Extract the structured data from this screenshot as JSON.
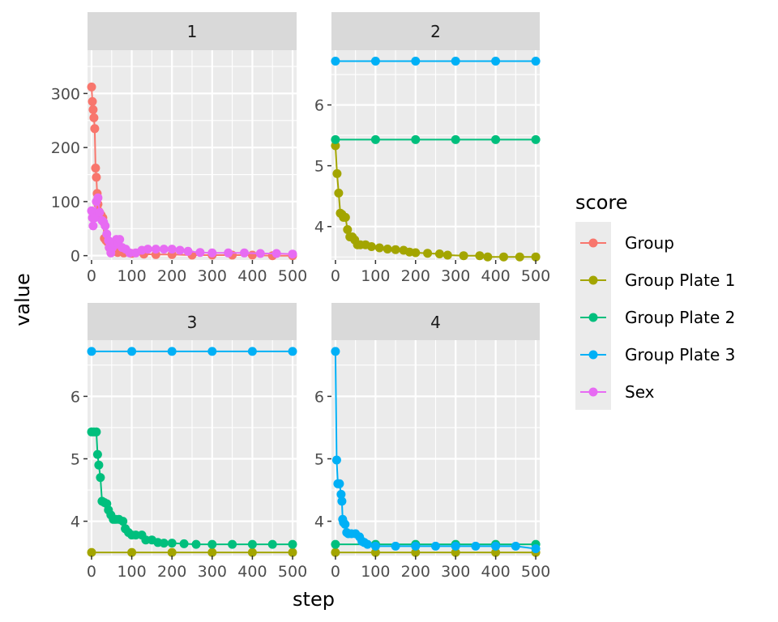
{
  "chart_data": {
    "type": "line",
    "xlabel": "step",
    "ylabel": "value",
    "legend": {
      "title": "score",
      "position": "right",
      "entries": [
        {
          "name": "Group",
          "color": "#F8766D"
        },
        {
          "name": "Group Plate 1",
          "color": "#A3A500"
        },
        {
          "name": "Group Plate 2",
          "color": "#00BF7D"
        },
        {
          "name": "Group Plate 3",
          "color": "#00B0F6"
        },
        {
          "name": "Sex",
          "color": "#E76BF3"
        }
      ]
    },
    "grid": true,
    "x_ticks": [
      0,
      100,
      200,
      300,
      400,
      500
    ],
    "xlim": [
      -10,
      510
    ],
    "panels": [
      {
        "strip": "1",
        "ylim": [
          -8,
          380
        ],
        "y_ticks": [
          0,
          100,
          200,
          300
        ],
        "series": [
          {
            "name": "Group",
            "points": [
              [
                0,
                312
              ],
              [
                2,
                285
              ],
              [
                4,
                270
              ],
              [
                6,
                255
              ],
              [
                8,
                235
              ],
              [
                10,
                162
              ],
              [
                12,
                145
              ],
              [
                14,
                115
              ],
              [
                16,
                95
              ],
              [
                18,
                82
              ],
              [
                20,
                80
              ],
              [
                24,
                75
              ],
              [
                28,
                70
              ],
              [
                32,
                32
              ],
              [
                36,
                28
              ],
              [
                40,
                25
              ],
              [
                44,
                15
              ],
              [
                48,
                10
              ],
              [
                55,
                8
              ],
              [
                65,
                6
              ],
              [
                80,
                5
              ],
              [
                100,
                4
              ],
              [
                130,
                3
              ],
              [
                160,
                2
              ],
              [
                200,
                2
              ],
              [
                250,
                1
              ],
              [
                300,
                1
              ],
              [
                350,
                1
              ],
              [
                400,
                1
              ],
              [
                450,
                0
              ],
              [
                500,
                0
              ]
            ]
          },
          {
            "name": "Sex",
            "points": [
              [
                0,
                83
              ],
              [
                2,
                70
              ],
              [
                4,
                55
              ],
              [
                8,
                70
              ],
              [
                12,
                100
              ],
              [
                16,
                107
              ],
              [
                20,
                80
              ],
              [
                26,
                65
              ],
              [
                30,
                62
              ],
              [
                34,
                55
              ],
              [
                38,
                40
              ],
              [
                42,
                28
              ],
              [
                44,
                15
              ],
              [
                48,
                5
              ],
              [
                52,
                15
              ],
              [
                58,
                20
              ],
              [
                62,
                30
              ],
              [
                66,
                22
              ],
              [
                70,
                30
              ],
              [
                76,
                15
              ],
              [
                85,
                12
              ],
              [
                95,
                5
              ],
              [
                110,
                5
              ],
              [
                125,
                10
              ],
              [
                140,
                12
              ],
              [
                160,
                12
              ],
              [
                180,
                12
              ],
              [
                200,
                12
              ],
              [
                220,
                10
              ],
              [
                240,
                8
              ],
              [
                270,
                6
              ],
              [
                300,
                5
              ],
              [
                340,
                5
              ],
              [
                380,
                5
              ],
              [
                420,
                4
              ],
              [
                460,
                4
              ],
              [
                500,
                3
              ]
            ]
          }
        ]
      },
      {
        "strip": "2",
        "ylim": [
          3.45,
          6.9
        ],
        "y_ticks": [
          4,
          5,
          6
        ],
        "series": [
          {
            "name": "Group Plate 1",
            "points": [
              [
                0,
                5.33
              ],
              [
                4,
                4.87
              ],
              [
                8,
                4.55
              ],
              [
                12,
                4.22
              ],
              [
                16,
                4.2
              ],
              [
                20,
                4.15
              ],
              [
                25,
                4.15
              ],
              [
                30,
                3.95
              ],
              [
                36,
                3.83
              ],
              [
                42,
                3.83
              ],
              [
                48,
                3.78
              ],
              [
                55,
                3.7
              ],
              [
                62,
                3.7
              ],
              [
                75,
                3.7
              ],
              [
                90,
                3.67
              ],
              [
                110,
                3.65
              ],
              [
                130,
                3.63
              ],
              [
                150,
                3.62
              ],
              [
                170,
                3.61
              ],
              [
                185,
                3.58
              ],
              [
                200,
                3.57
              ],
              [
                230,
                3.56
              ],
              [
                260,
                3.55
              ],
              [
                280,
                3.53
              ],
              [
                320,
                3.52
              ],
              [
                360,
                3.52
              ],
              [
                380,
                3.5
              ],
              [
                420,
                3.5
              ],
              [
                460,
                3.5
              ],
              [
                500,
                3.5
              ]
            ]
          },
          {
            "name": "Group Plate 2",
            "points": [
              [
                0,
                5.43
              ],
              [
                100,
                5.43
              ],
              [
                200,
                5.43
              ],
              [
                300,
                5.43
              ],
              [
                400,
                5.43
              ],
              [
                500,
                5.43
              ]
            ]
          },
          {
            "name": "Group Plate 3",
            "points": [
              [
                0,
                6.72
              ],
              [
                100,
                6.72
              ],
              [
                200,
                6.72
              ],
              [
                300,
                6.72
              ],
              [
                400,
                6.72
              ],
              [
                500,
                6.72
              ]
            ]
          }
        ]
      },
      {
        "strip": "3",
        "ylim": [
          3.45,
          6.9
        ],
        "y_ticks": [
          4,
          5,
          6
        ],
        "series": [
          {
            "name": "Group Plate 1",
            "points": [
              [
                0,
                3.5
              ],
              [
                100,
                3.5
              ],
              [
                200,
                3.5
              ],
              [
                300,
                3.5
              ],
              [
                400,
                3.5
              ],
              [
                500,
                3.5
              ]
            ]
          },
          {
            "name": "Group Plate 2",
            "points": [
              [
                0,
                5.43
              ],
              [
                6,
                5.43
              ],
              [
                12,
                5.43
              ],
              [
                15,
                5.07
              ],
              [
                18,
                4.9
              ],
              [
                22,
                4.7
              ],
              [
                26,
                4.32
              ],
              [
                32,
                4.3
              ],
              [
                38,
                4.28
              ],
              [
                42,
                4.18
              ],
              [
                48,
                4.1
              ],
              [
                54,
                4.03
              ],
              [
                60,
                4.03
              ],
              [
                68,
                4.03
              ],
              [
                78,
                4.0
              ],
              [
                84,
                3.88
              ],
              [
                92,
                3.82
              ],
              [
                100,
                3.78
              ],
              [
                110,
                3.78
              ],
              [
                125,
                3.78
              ],
              [
                135,
                3.7
              ],
              [
                150,
                3.7
              ],
              [
                165,
                3.66
              ],
              [
                180,
                3.65
              ],
              [
                200,
                3.65
              ],
              [
                230,
                3.64
              ],
              [
                260,
                3.63
              ],
              [
                300,
                3.63
              ],
              [
                350,
                3.63
              ],
              [
                400,
                3.63
              ],
              [
                450,
                3.63
              ],
              [
                500,
                3.63
              ]
            ]
          },
          {
            "name": "Group Plate 3",
            "points": [
              [
                0,
                6.72
              ],
              [
                100,
                6.72
              ],
              [
                200,
                6.72
              ],
              [
                300,
                6.72
              ],
              [
                400,
                6.72
              ],
              [
                500,
                6.72
              ]
            ]
          }
        ]
      },
      {
        "strip": "4",
        "ylim": [
          3.45,
          6.9
        ],
        "y_ticks": [
          4,
          5,
          6
        ],
        "series": [
          {
            "name": "Group Plate 1",
            "points": [
              [
                0,
                3.5
              ],
              [
                100,
                3.5
              ],
              [
                200,
                3.5
              ],
              [
                300,
                3.5
              ],
              [
                400,
                3.5
              ],
              [
                500,
                3.5
              ]
            ]
          },
          {
            "name": "Group Plate 2",
            "points": [
              [
                0,
                3.63
              ],
              [
                100,
                3.63
              ],
              [
                200,
                3.63
              ],
              [
                300,
                3.63
              ],
              [
                400,
                3.63
              ],
              [
                500,
                3.63
              ]
            ]
          },
          {
            "name": "Group Plate 3",
            "points": [
              [
                0,
                6.72
              ],
              [
                3,
                4.98
              ],
              [
                6,
                4.6
              ],
              [
                10,
                4.6
              ],
              [
                14,
                4.43
              ],
              [
                16,
                4.32
              ],
              [
                18,
                4.03
              ],
              [
                20,
                3.98
              ],
              [
                24,
                3.95
              ],
              [
                28,
                3.82
              ],
              [
                32,
                3.8
              ],
              [
                40,
                3.8
              ],
              [
                50,
                3.8
              ],
              [
                60,
                3.75
              ],
              [
                66,
                3.68
              ],
              [
                72,
                3.66
              ],
              [
                80,
                3.63
              ],
              [
                100,
                3.6
              ],
              [
                150,
                3.6
              ],
              [
                200,
                3.6
              ],
              [
                250,
                3.6
              ],
              [
                300,
                3.6
              ],
              [
                350,
                3.6
              ],
              [
                400,
                3.6
              ],
              [
                450,
                3.6
              ],
              [
                500,
                3.56
              ]
            ]
          }
        ]
      }
    ]
  }
}
